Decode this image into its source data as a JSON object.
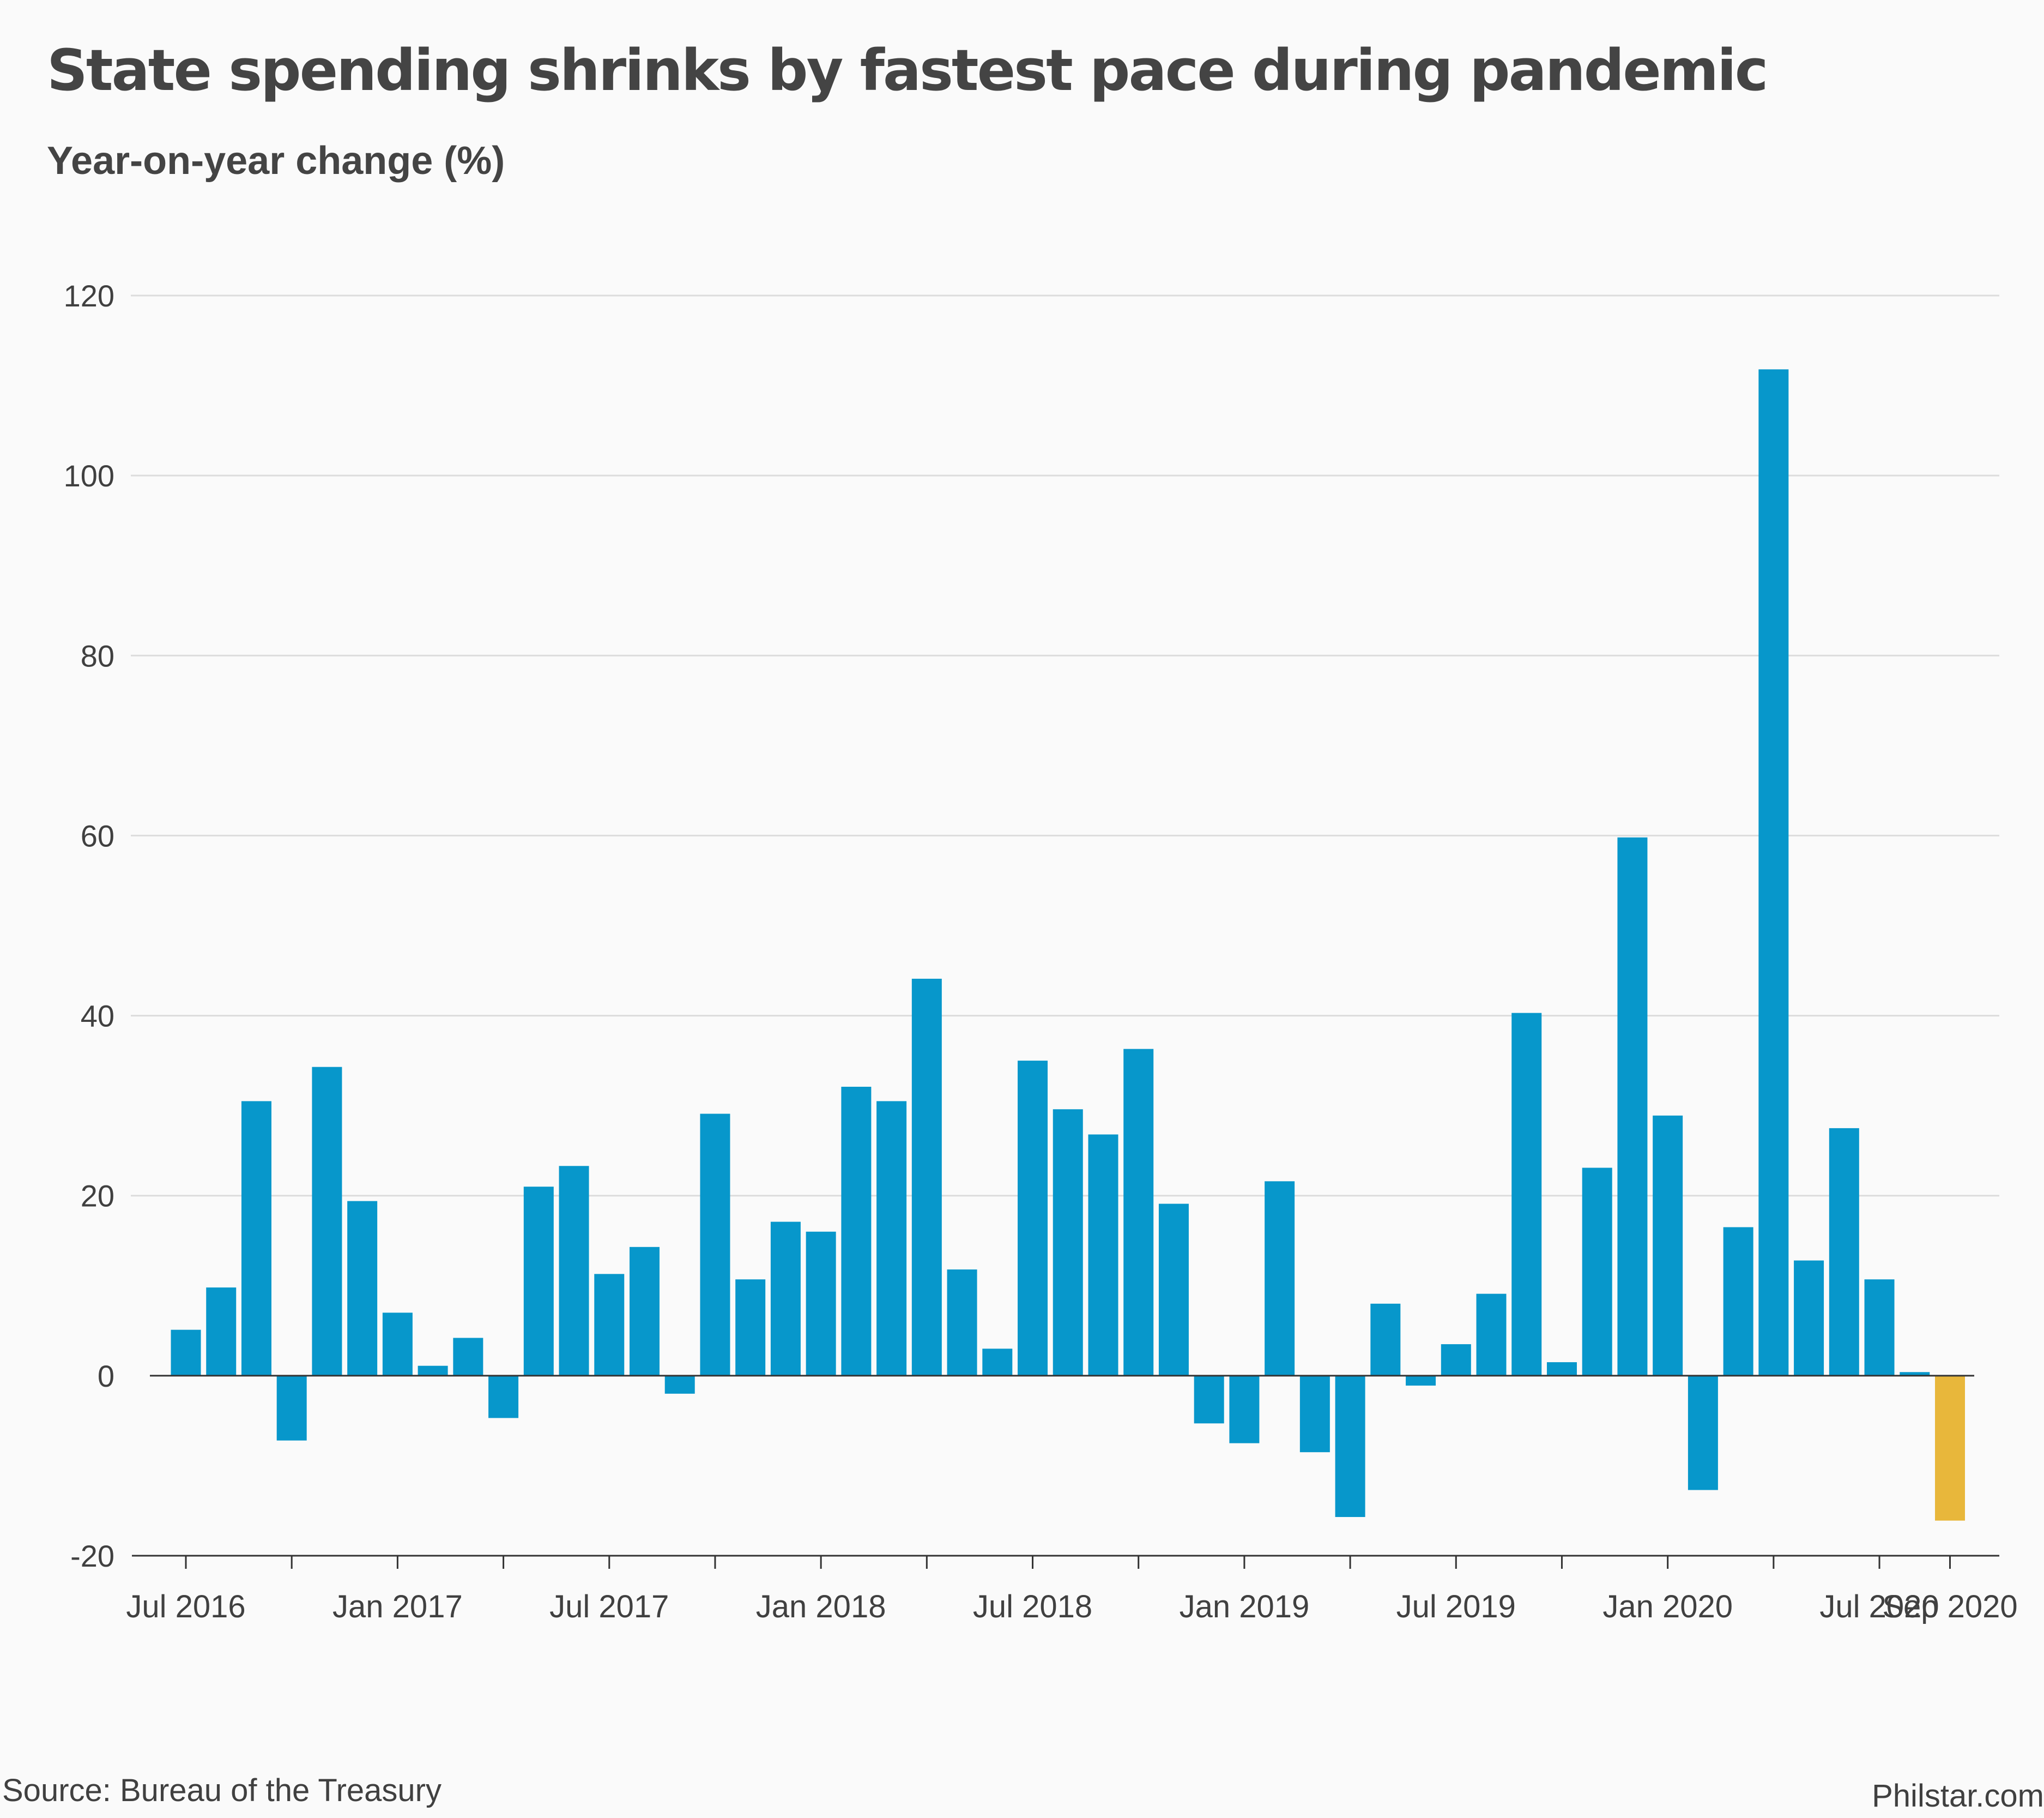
{
  "title": "State spending shrinks by fastest pace during pandemic",
  "subtitle": "Year-on-year change (%)",
  "source": "Source: Bureau of the Treasury",
  "credit": "Philstar.com",
  "colors": {
    "bar": "#0797cb",
    "highlight": "#e8b73b",
    "grid": "#dcdcdc",
    "axis": "#333333",
    "text": "#404040",
    "background": "#fafafa"
  },
  "chart_data": {
    "type": "bar",
    "xlabel": "",
    "ylabel": "",
    "ylim": [
      -20,
      120
    ],
    "yticks": [
      -20,
      0,
      20,
      40,
      60,
      80,
      100,
      120
    ],
    "grid": true,
    "categories": [
      "Jul 2016",
      "Aug 2016",
      "Sep 2016",
      "Oct 2016",
      "Nov 2016",
      "Dec 2016",
      "Jan 2017",
      "Feb 2017",
      "Mar 2017",
      "Apr 2017",
      "May 2017",
      "Jun 2017",
      "Jul 2017",
      "Aug 2017",
      "Sep 2017",
      "Oct 2017",
      "Nov 2017",
      "Dec 2017",
      "Jan 2018",
      "Feb 2018",
      "Mar 2018",
      "Apr 2018",
      "May 2018",
      "Jun 2018",
      "Jul 2018",
      "Aug 2018",
      "Sep 2018",
      "Oct 2018",
      "Nov 2018",
      "Dec 2018",
      "Jan 2019",
      "Feb 2019",
      "Mar 2019",
      "Apr 2019",
      "May 2019",
      "Jun 2019",
      "Jul 2019",
      "Aug 2019",
      "Sep 2019",
      "Oct 2019",
      "Nov 2019",
      "Dec 2019",
      "Jan 2020",
      "Feb 2020",
      "Mar 2020",
      "Apr 2020",
      "May 2020",
      "Jun 2020",
      "Jul 2020",
      "Aug 2020",
      "Sep 2020"
    ],
    "values": [
      5.1,
      9.8,
      30.5,
      -7.2,
      34.3,
      19.4,
      7.0,
      1.1,
      4.2,
      -4.7,
      21.0,
      23.3,
      11.3,
      14.3,
      -2.0,
      29.1,
      10.7,
      17.1,
      16.0,
      32.1,
      30.5,
      44.1,
      11.8,
      3.0,
      35.0,
      29.6,
      26.8,
      36.3,
      19.1,
      -5.3,
      -7.5,
      21.6,
      -8.5,
      -15.7,
      8.0,
      -1.1,
      3.5,
      9.1,
      40.3,
      1.5,
      23.1,
      59.8,
      28.9,
      -12.7,
      16.5,
      111.8,
      12.8,
      27.5,
      10.7,
      0.4,
      -16.1
    ],
    "highlight_index": 50,
    "tick_labels": [
      {
        "index": 0,
        "label": "Jul 2016"
      },
      {
        "index": 6,
        "label": "Jan 2017"
      },
      {
        "index": 12,
        "label": "Jul 2017"
      },
      {
        "index": 18,
        "label": "Jan 2018"
      },
      {
        "index": 24,
        "label": "Jul 2018"
      },
      {
        "index": 30,
        "label": "Jan 2019"
      },
      {
        "index": 36,
        "label": "Jul 2019"
      },
      {
        "index": 42,
        "label": "Jan 2020"
      },
      {
        "index": 48,
        "label": "Jul 2020"
      },
      {
        "index": 50,
        "label": "Sep 2020"
      }
    ],
    "minor_tick_indices": [
      3,
      9,
      15,
      21,
      27,
      33,
      39,
      45
    ]
  }
}
